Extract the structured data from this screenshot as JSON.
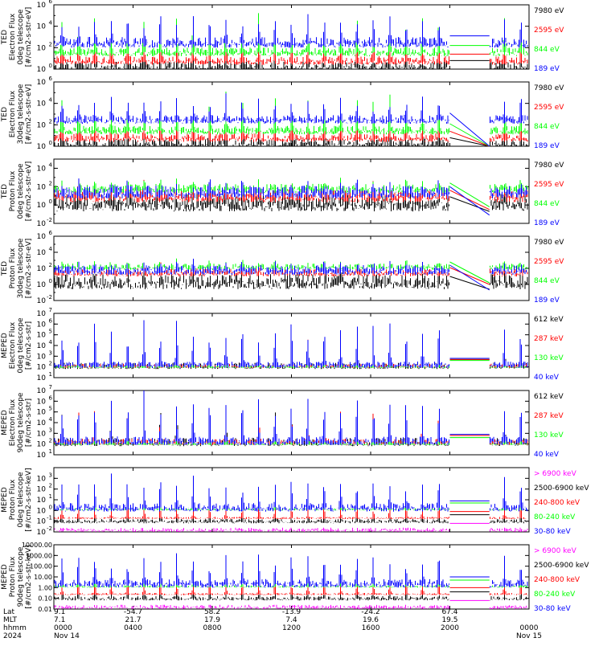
{
  "colors": {
    "black": "#000000",
    "red": "#ff0000",
    "green": "#00ff00",
    "blue": "#0000ff",
    "magenta": "#ff00ff"
  },
  "chart_data": [
    {
      "type": "line",
      "ylabel": [
        "TED",
        "Electron Flux",
        "0deg telescope",
        "[#/cm2-s-str-eV]"
      ],
      "scale": "log",
      "ylim_exp": [
        0,
        6
      ],
      "tick_labels": [
        {
          "exp": 0,
          "text": "10",
          "sup": "0"
        },
        {
          "exp": 2,
          "text": "10",
          "sup": "2"
        },
        {
          "exp": 4,
          "text": "10",
          "sup": "4"
        },
        {
          "exp": 6,
          "text": "10",
          "sup": "6"
        }
      ],
      "series": [
        {
          "name": "7980 eV",
          "color": "black",
          "base": 0.2,
          "noise": 0.5,
          "peak": 1.8
        },
        {
          "name": "2595 eV",
          "color": "red",
          "base": 0.8,
          "noise": 0.4,
          "peak": 2.6
        },
        {
          "name": "844 eV",
          "color": "green",
          "base": 1.6,
          "noise": 0.4,
          "peak": 3.0
        },
        {
          "name": "189 eV",
          "color": "blue",
          "base": 2.5,
          "noise": 0.5,
          "peak": 2.2
        }
      ]
    },
    {
      "type": "line",
      "ylabel": [
        "TED",
        "Electron Flux",
        "30deg telescope",
        "[#/cm2-s-str-eV]"
      ],
      "scale": "log",
      "ylim_exp": [
        0,
        6
      ],
      "tick_labels": [
        {
          "exp": 0,
          "text": "10",
          "sup": "0"
        },
        {
          "exp": 2,
          "text": "10",
          "sup": "2"
        },
        {
          "exp": 4,
          "text": "10",
          "sup": "4"
        },
        {
          "exp": 6,
          "text": "10",
          "sup": "6"
        }
      ],
      "series": [
        {
          "name": "7980 eV",
          "color": "black",
          "base": 0.2,
          "noise": 0.5,
          "peak": 1.8
        },
        {
          "name": "2595 eV",
          "color": "red",
          "base": 0.8,
          "noise": 0.4,
          "peak": 2.6
        },
        {
          "name": "844 eV",
          "color": "green",
          "base": 1.5,
          "noise": 0.4,
          "peak": 3.0
        },
        {
          "name": "189 eV",
          "color": "blue",
          "base": 2.5,
          "noise": 0.4,
          "peak": 2.0
        }
      ]
    },
    {
      "type": "line",
      "ylabel": [
        "TED",
        "Proton Flux",
        "0deg telescope",
        "[#/cm2-s-str-eV]"
      ],
      "scale": "log",
      "ylim_exp": [
        -2,
        5
      ],
      "tick_labels": [
        {
          "exp": -2,
          "text": "10",
          "sup": "-2"
        },
        {
          "exp": 0,
          "text": "10",
          "sup": "0"
        },
        {
          "exp": 2,
          "text": "10",
          "sup": "2"
        },
        {
          "exp": 4,
          "text": "10",
          "sup": "4"
        }
      ],
      "series": [
        {
          "name": "7980 eV",
          "color": "black",
          "base": 0.3,
          "noise": 1.0,
          "peak": 1.0
        },
        {
          "name": "2595 eV",
          "color": "red",
          "base": 1.0,
          "noise": 0.7,
          "peak": 1.0
        },
        {
          "name": "844 eV",
          "color": "green",
          "base": 1.8,
          "noise": 0.5,
          "peak": 0.8
        },
        {
          "name": "189 eV",
          "color": "blue",
          "base": 1.4,
          "noise": 0.7,
          "peak": 1.0
        }
      ]
    },
    {
      "type": "line",
      "ylabel": [
        "TED",
        "Proton Flux",
        "30deg telescope",
        "[#/cm2-s-str-eV]"
      ],
      "scale": "log",
      "ylim_exp": [
        -2,
        6
      ],
      "tick_labels": [
        {
          "exp": -2,
          "text": "10",
          "sup": "-2"
        },
        {
          "exp": 0,
          "text": "10",
          "sup": "0"
        },
        {
          "exp": 2,
          "text": "10",
          "sup": "2"
        },
        {
          "exp": 4,
          "text": "10",
          "sup": "4"
        },
        {
          "exp": 6,
          "text": "10",
          "sup": "6"
        }
      ],
      "series": [
        {
          "name": "7980 eV",
          "color": "black",
          "base": 0.4,
          "noise": 1.0,
          "peak": 0.8
        },
        {
          "name": "2595 eV",
          "color": "red",
          "base": 1.5,
          "noise": 0.5,
          "peak": 0.8
        },
        {
          "name": "844 eV",
          "color": "green",
          "base": 2.2,
          "noise": 0.4,
          "peak": 0.6
        },
        {
          "name": "189 eV",
          "color": "blue",
          "base": 1.8,
          "noise": 0.6,
          "peak": 0.8
        }
      ]
    },
    {
      "type": "line",
      "ylabel": [
        "MEPED",
        "Electron Flux",
        "0deg telescope",
        "[#/cm2-s-str]"
      ],
      "scale": "log",
      "ylim_exp": [
        1,
        7
      ],
      "tick_labels": [
        {
          "exp": 1,
          "text": "10",
          "sup": "1"
        },
        {
          "exp": 2,
          "text": "10",
          "sup": "2"
        },
        {
          "exp": 3,
          "text": "10",
          "sup": "3"
        },
        {
          "exp": 4,
          "text": "10",
          "sup": "4"
        },
        {
          "exp": 5,
          "text": "10",
          "sup": "5"
        },
        {
          "exp": 6,
          "text": "10",
          "sup": "6"
        },
        {
          "exp": 7,
          "text": "10",
          "sup": "7"
        }
      ],
      "series": [
        {
          "name": "612 keV",
          "color": "black",
          "base": 2.1,
          "noise": 0.3,
          "peak": 1.8
        },
        {
          "name": "287 keV",
          "color": "red",
          "base": 2.1,
          "noise": 0.2,
          "peak": 2.2
        },
        {
          "name": "130 keV",
          "color": "green",
          "base": 2.0,
          "noise": 0.1,
          "peak": 1.0
        },
        {
          "name": "40 keV",
          "color": "blue",
          "base": 2.2,
          "noise": 0.3,
          "peak": 3.6
        }
      ]
    },
    {
      "type": "line",
      "ylabel": [
        "MEPED",
        "Electron Flux",
        "90deg telescope",
        "[#/cm2-s-str]"
      ],
      "scale": "log",
      "ylim_exp": [
        1,
        7
      ],
      "tick_labels": [
        {
          "exp": 1,
          "text": "10",
          "sup": "1"
        },
        {
          "exp": 2,
          "text": "10",
          "sup": "2"
        },
        {
          "exp": 3,
          "text": "10",
          "sup": "3"
        },
        {
          "exp": 4,
          "text": "10",
          "sup": "4"
        },
        {
          "exp": 5,
          "text": "10",
          "sup": "5"
        },
        {
          "exp": 6,
          "text": "10",
          "sup": "6"
        },
        {
          "exp": 7,
          "text": "10",
          "sup": "7"
        }
      ],
      "series": [
        {
          "name": "612 keV",
          "color": "black",
          "base": 2.2,
          "noise": 0.4,
          "peak": 2.6
        },
        {
          "name": "287 keV",
          "color": "red",
          "base": 2.2,
          "noise": 0.3,
          "peak": 3.0
        },
        {
          "name": "130 keV",
          "color": "green",
          "base": 2.0,
          "noise": 0.1,
          "peak": 1.2
        },
        {
          "name": "40 keV",
          "color": "blue",
          "base": 2.3,
          "noise": 0.4,
          "peak": 3.8
        }
      ]
    },
    {
      "type": "line",
      "ylabel": [
        "MEPED",
        "Proton Flux",
        "0deg telescope",
        "[#/cm2-s-str-keV]"
      ],
      "scale": "log",
      "ylim_exp": [
        -2,
        4
      ],
      "tick_labels": [
        {
          "exp": -2,
          "text": "10",
          "sup": "-2"
        },
        {
          "exp": -1,
          "text": "10",
          "sup": "-1"
        },
        {
          "exp": 0,
          "text": "10",
          "sup": "0"
        },
        {
          "exp": 1,
          "text": "10",
          "sup": "1"
        },
        {
          "exp": 2,
          "text": "10",
          "sup": "2"
        },
        {
          "exp": 3,
          "text": "10",
          "sup": "3"
        }
      ],
      "series": [
        {
          "name": "> 6900 keV",
          "color": "magenta",
          "base": -1.8,
          "noise": 0.2,
          "peak": 0.0
        },
        {
          "name": "2500-6900 keV",
          "color": "black",
          "base": -1.0,
          "noise": 0.2,
          "peak": 0.8
        },
        {
          "name": "240-800 keV",
          "color": "red",
          "base": -0.7,
          "noise": 0.1,
          "peak": 1.2
        },
        {
          "name": "80-240 keV",
          "color": "green",
          "base": 0.1,
          "noise": 0.1,
          "peak": 0.6
        },
        {
          "name": "30-80 keV",
          "color": "blue",
          "base": 0.3,
          "noise": 0.4,
          "peak": 2.4
        }
      ]
    },
    {
      "type": "line",
      "ylabel": [
        "MEPED",
        "Proton Flux",
        "90deg telescope",
        "[#/cm2-s-str-keV]"
      ],
      "scale": "log",
      "ylim_exp": [
        -2,
        4
      ],
      "tick_labels": [
        {
          "exp": -2,
          "text": "0.01",
          "sup": ""
        },
        {
          "exp": -1,
          "text": "0.10",
          "sup": ""
        },
        {
          "exp": 0,
          "text": "1.00",
          "sup": ""
        },
        {
          "exp": 1,
          "text": "10.00",
          "sup": ""
        },
        {
          "exp": 2,
          "text": "100.00",
          "sup": ""
        },
        {
          "exp": 3,
          "text": "1000.00",
          "sup": ""
        },
        {
          "exp": 4,
          "text": "10000.00",
          "sup": ""
        }
      ],
      "series": [
        {
          "name": "> 6900 keV",
          "color": "magenta",
          "base": -1.8,
          "noise": 0.2,
          "peak": 0.0
        },
        {
          "name": "2500-6900 keV",
          "color": "black",
          "base": -1.0,
          "noise": 0.2,
          "peak": 0.8
        },
        {
          "name": "240-800 keV",
          "color": "red",
          "base": -0.6,
          "noise": 0.1,
          "peak": 1.4
        },
        {
          "name": "80-240 keV",
          "color": "green",
          "base": 0.1,
          "noise": 0.1,
          "peak": 0.6
        },
        {
          "name": "30-80 keV",
          "color": "blue",
          "base": 0.4,
          "noise": 0.4,
          "peak": 2.6
        }
      ]
    }
  ],
  "x_axis": {
    "row_labels": [
      "Lat",
      "MLT",
      "hhmm",
      "2024"
    ],
    "ticks": [
      {
        "frac": 0.0,
        "lat": "9.1",
        "mlt": "7.1",
        "hhmm": "0000",
        "date": "Nov 14"
      },
      {
        "frac": 0.1667,
        "lat": "-54.7",
        "mlt": "21.7",
        "hhmm": "0400",
        "date": ""
      },
      {
        "frac": 0.3333,
        "lat": "58.2",
        "mlt": "17.9",
        "hhmm": "0800",
        "date": ""
      },
      {
        "frac": 0.5,
        "lat": "-13.9",
        "mlt": "7.4",
        "hhmm": "1200",
        "date": ""
      },
      {
        "frac": 0.6667,
        "lat": "-24.2",
        "mlt": "19.6",
        "hhmm": "1600",
        "date": ""
      },
      {
        "frac": 0.8333,
        "lat": "67.4",
        "mlt": "19.5",
        "hhmm": "2000",
        "date": ""
      },
      {
        "frac": 1.0,
        "lat": "",
        "mlt": "",
        "hhmm": "0000",
        "date": "Nov 15"
      }
    ],
    "gap_hours": [
      20.0,
      22.0
    ],
    "pass_count": 29
  }
}
